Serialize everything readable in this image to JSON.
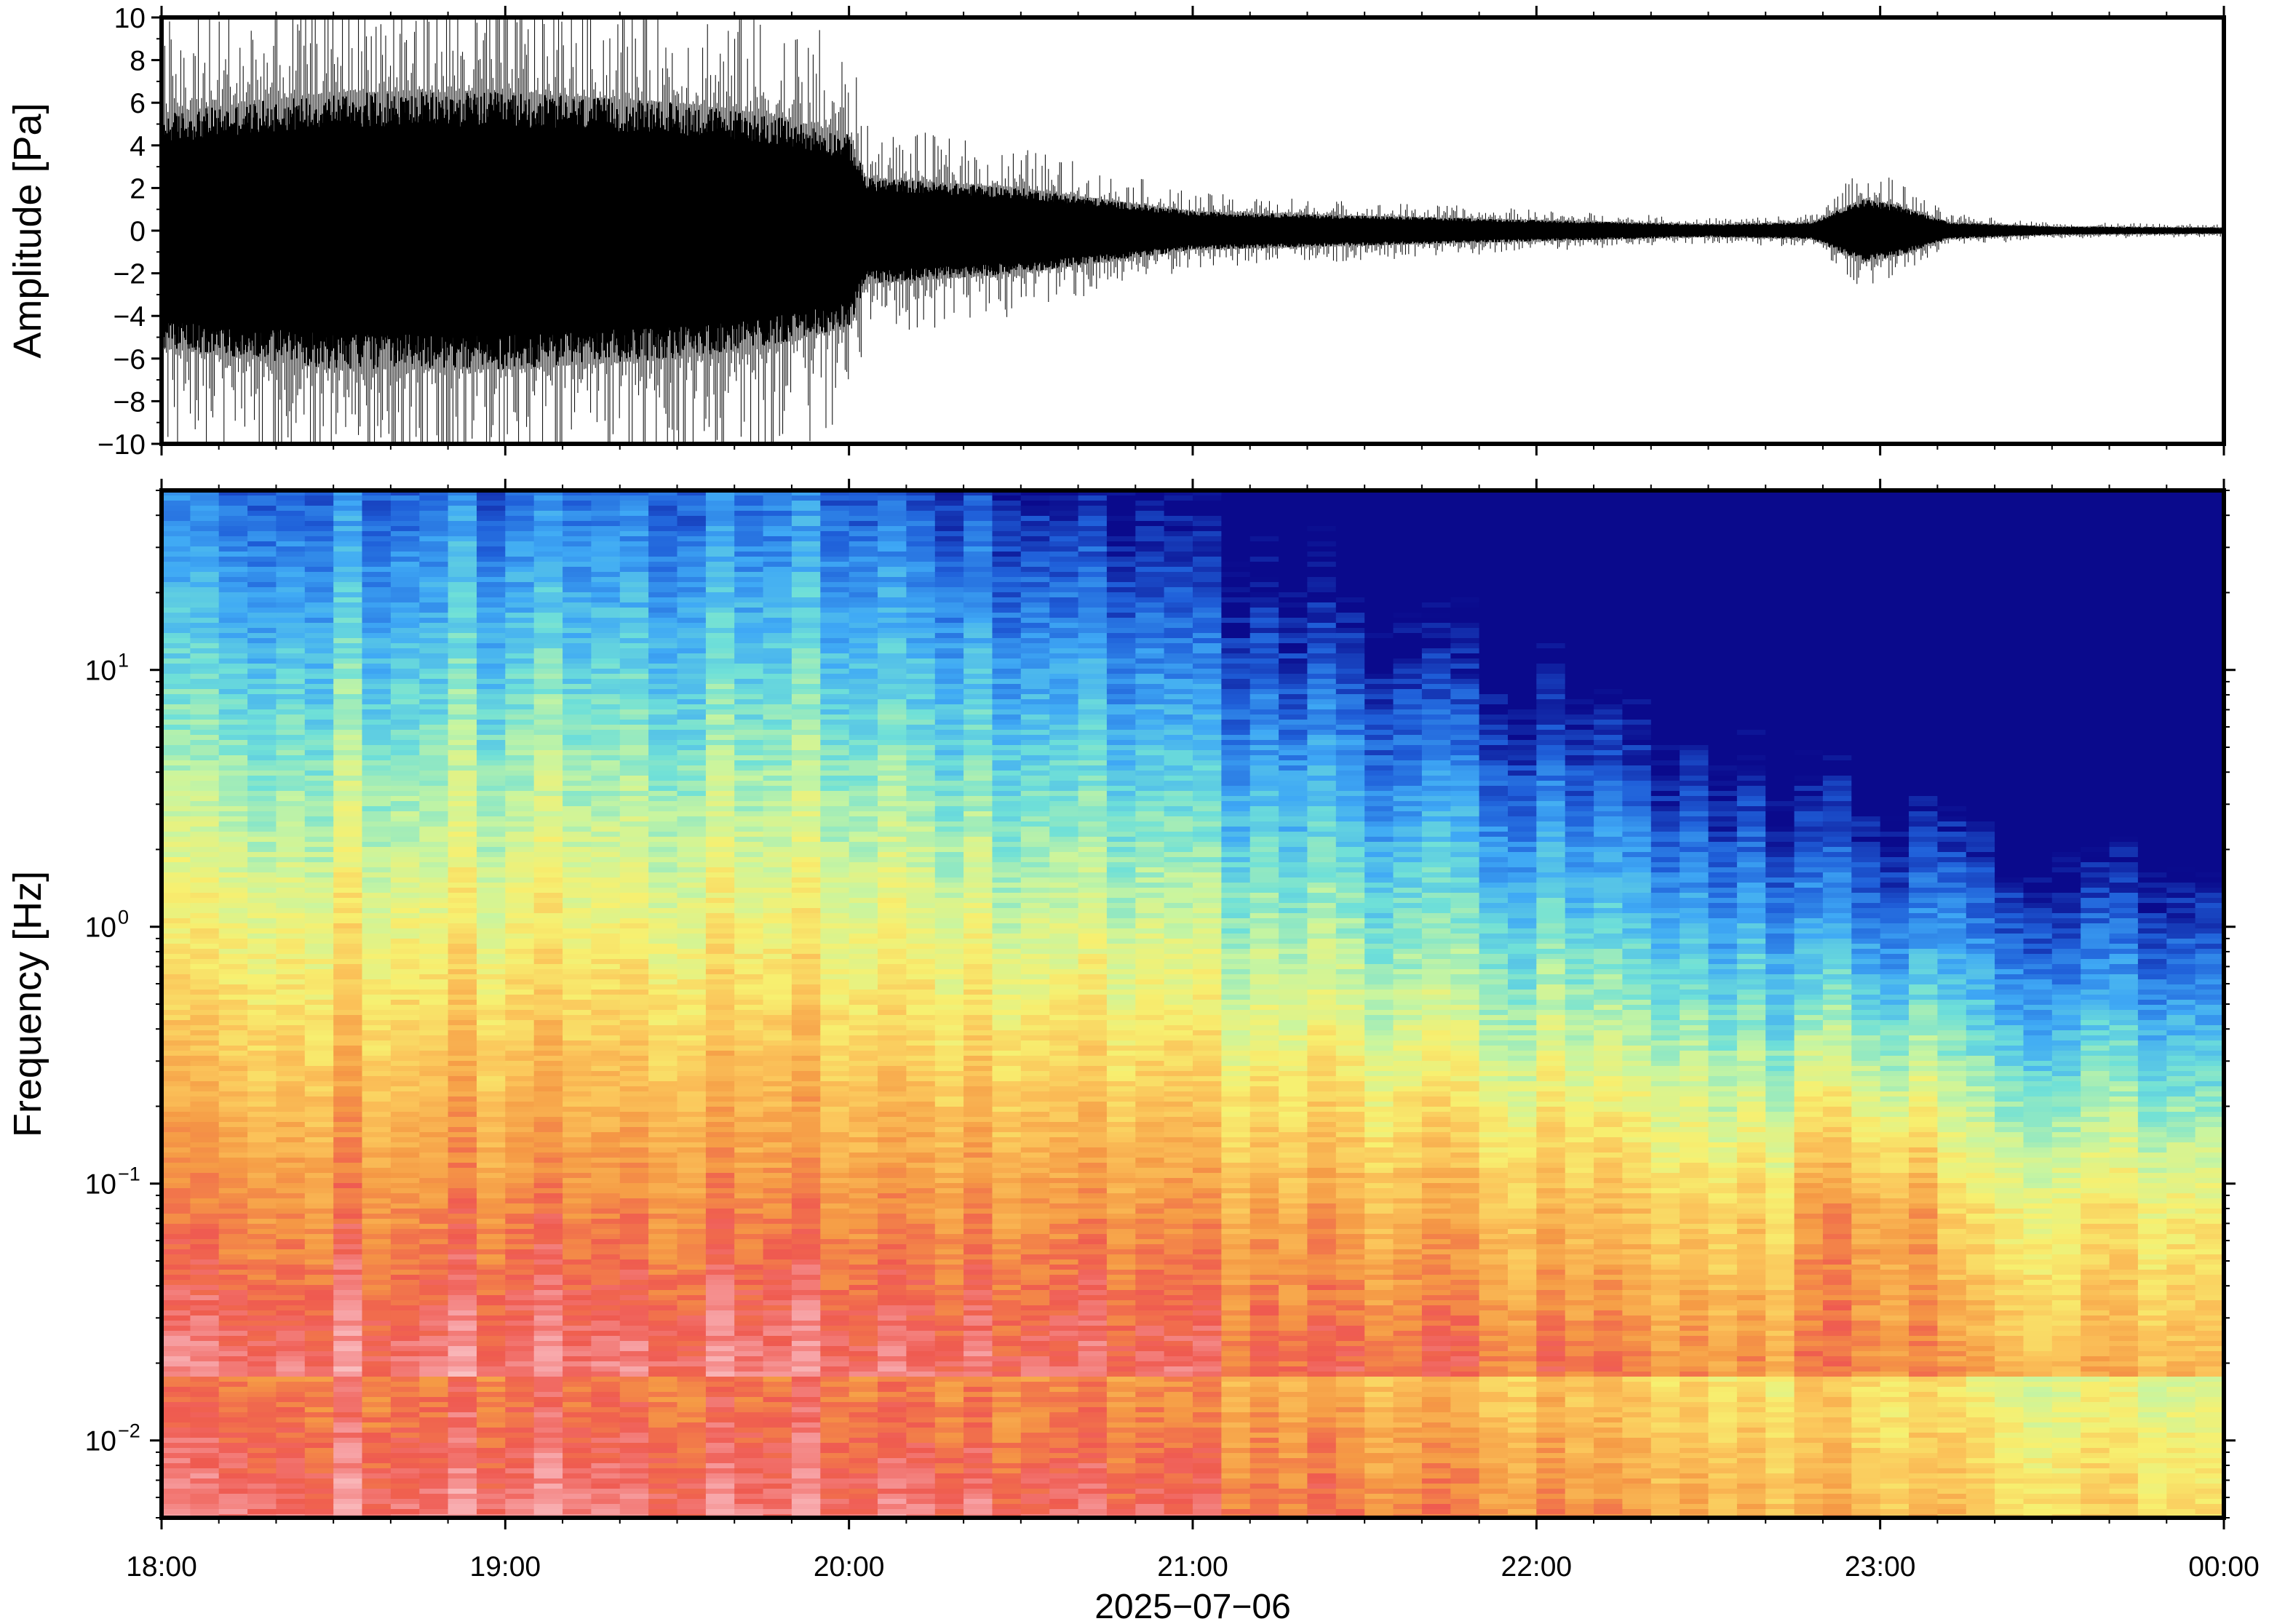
{
  "chart_data": [
    {
      "type": "line",
      "panel": "waveform",
      "ylabel": "Amplitude [Pa]",
      "xlabel": "",
      "ylim": [
        -10,
        10
      ],
      "y_ticks": [
        {
          "value": 10,
          "label": "10"
        },
        {
          "value": 8,
          "label": "8"
        },
        {
          "value": 6,
          "label": "6"
        },
        {
          "value": 4,
          "label": "4"
        },
        {
          "value": 2,
          "label": "2"
        },
        {
          "value": 0,
          "label": "0"
        },
        {
          "value": -2,
          "label": "−2"
        },
        {
          "value": -4,
          "label": "−4"
        },
        {
          "value": -6,
          "label": "−6"
        },
        {
          "value": -8,
          "label": "−8"
        },
        {
          "value": -10,
          "label": "−10"
        }
      ],
      "x_range_hours": [
        18,
        24
      ],
      "envelope": {
        "x_hours": [
          18.0,
          18.5,
          19.0,
          19.5,
          19.75,
          20.0,
          20.05,
          20.5,
          21.0,
          21.5,
          22.0,
          22.5,
          22.8,
          22.95,
          23.05,
          23.2,
          23.5,
          24.0
        ],
        "max_amplitude": [
          5.5,
          6.5,
          6.5,
          6.0,
          5.5,
          4.5,
          2.5,
          2.0,
          0.9,
          0.7,
          0.5,
          0.3,
          0.4,
          1.5,
          1.2,
          0.4,
          0.2,
          0.15
        ]
      },
      "grid": false
    },
    {
      "type": "heatmap",
      "panel": "spectrogram",
      "ylabel": "Frequency [Hz]",
      "xlabel": "2025−07−06",
      "y_scale": "log",
      "ylim": [
        0.005,
        50
      ],
      "y_ticks": [
        {
          "value": 0.01,
          "base": "10",
          "exp": "−2"
        },
        {
          "value": 0.1,
          "base": "10",
          "exp": "−1"
        },
        {
          "value": 1,
          "base": "10",
          "exp": "0"
        },
        {
          "value": 10,
          "base": "10",
          "exp": "1"
        }
      ],
      "colormap": [
        "#0a0a8c",
        "#1f5fd9",
        "#3fa9f5",
        "#6fe0d8",
        "#c8f5a0",
        "#f7f070",
        "#fbc45a",
        "#f59a45",
        "#ef5a50",
        "#f7a3a6",
        "#fcd7d7"
      ],
      "grid": false
    }
  ],
  "x_axis": {
    "ticks": [
      {
        "hour": 18,
        "label": "18:00"
      },
      {
        "hour": 19,
        "label": "19:00"
      },
      {
        "hour": 20,
        "label": "20:00"
      },
      {
        "hour": 21,
        "label": "21:00"
      },
      {
        "hour": 22,
        "label": "22:00"
      },
      {
        "hour": 23,
        "label": "23:00"
      },
      {
        "hour": 24,
        "label": "00:00"
      }
    ],
    "date_label": "2025−07−06"
  }
}
